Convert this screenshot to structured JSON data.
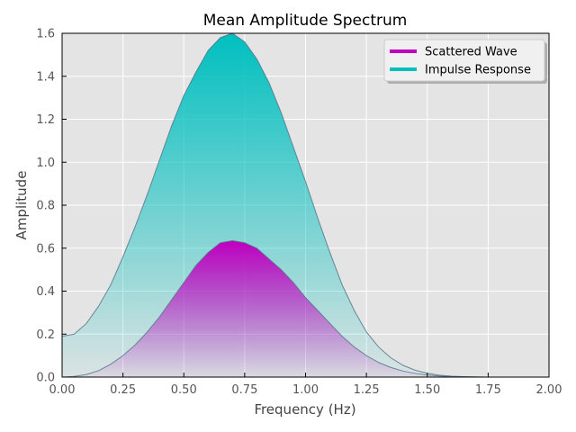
{
  "chart_data": {
    "type": "area",
    "title": "Mean Amplitude Spectrum",
    "xlabel": "Frequency (Hz)",
    "ylabel": "Amplitude",
    "xlim": [
      0,
      2
    ],
    "ylim": [
      0,
      1.6
    ],
    "xticks": [
      "0.00",
      "0.25",
      "0.50",
      "0.75",
      "1.00",
      "1.25",
      "1.50",
      "1.75",
      "2.00"
    ],
    "yticks": [
      "0.0",
      "0.2",
      "0.4",
      "0.6",
      "0.8",
      "1.0",
      "1.2",
      "1.4",
      "1.6"
    ],
    "grid": true,
    "legend_position": "top-right",
    "x": [
      0.0,
      0.05,
      0.1,
      0.15,
      0.2,
      0.25,
      0.3,
      0.35,
      0.4,
      0.45,
      0.5,
      0.55,
      0.6,
      0.65,
      0.7,
      0.75,
      0.8,
      0.85,
      0.9,
      0.95,
      1.0,
      1.05,
      1.1,
      1.15,
      1.2,
      1.25,
      1.3,
      1.35,
      1.4,
      1.45,
      1.5,
      1.55,
      1.6,
      1.65,
      1.7,
      1.75,
      1.8,
      1.85,
      1.9,
      1.95,
      2.0
    ],
    "series": [
      {
        "name": "Scattered Wave",
        "color": "#bf00bf",
        "values": [
          0.0,
          0.003,
          0.012,
          0.03,
          0.06,
          0.1,
          0.15,
          0.21,
          0.28,
          0.36,
          0.44,
          0.52,
          0.58,
          0.625,
          0.635,
          0.625,
          0.6,
          0.55,
          0.5,
          0.44,
          0.37,
          0.31,
          0.25,
          0.19,
          0.14,
          0.1,
          0.068,
          0.045,
          0.028,
          0.017,
          0.01,
          0.005,
          0.002,
          0.001,
          0.0,
          0.0,
          0.0,
          0.0,
          0.0,
          0.0,
          0.0
        ]
      },
      {
        "name": "Impulse Response",
        "color": "#00bfbf",
        "values": [
          0.19,
          0.2,
          0.25,
          0.33,
          0.43,
          0.56,
          0.7,
          0.85,
          1.01,
          1.17,
          1.31,
          1.42,
          1.52,
          1.58,
          1.6,
          1.56,
          1.48,
          1.37,
          1.23,
          1.07,
          0.91,
          0.74,
          0.58,
          0.43,
          0.31,
          0.21,
          0.14,
          0.09,
          0.055,
          0.032,
          0.018,
          0.009,
          0.004,
          0.002,
          0.001,
          0.0,
          0.0,
          0.0,
          0.0,
          0.0,
          0.0
        ]
      }
    ]
  }
}
